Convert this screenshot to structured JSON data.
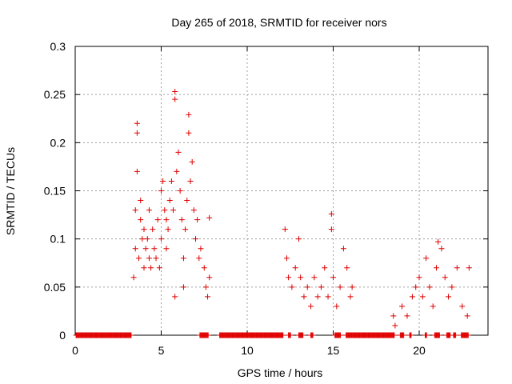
{
  "chart_data": {
    "type": "scatter",
    "title": "Day 265 of 2018, SRMTID for receiver nors",
    "xlabel": "GPS time / hours",
    "ylabel": "SRMTID / TECUs",
    "xlim": [
      0,
      24
    ],
    "ylim": [
      0,
      0.3
    ],
    "xticks": [
      0,
      5,
      10,
      15,
      20
    ],
    "yticks": [
      0,
      0.05,
      0.1,
      0.15,
      0.2,
      0.25,
      0.3
    ],
    "xtick_labels": [
      "0",
      "5",
      "10",
      "15",
      "20"
    ],
    "ytick_labels": [
      "0",
      "0.05",
      "0.1",
      "0.15",
      "0.2",
      "0.25",
      "0.3"
    ],
    "grid": true,
    "marker": "+",
    "color": "#e00000",
    "series": [
      {
        "name": "SRMTID",
        "points": [
          [
            3.4,
            0.06
          ],
          [
            3.5,
            0.09
          ],
          [
            3.5,
            0.13
          ],
          [
            3.6,
            0.21
          ],
          [
            3.6,
            0.22
          ],
          [
            3.6,
            0.17
          ],
          [
            3.7,
            0.08
          ],
          [
            3.8,
            0.12
          ],
          [
            3.8,
            0.14
          ],
          [
            3.9,
            0.1
          ],
          [
            4.0,
            0.07
          ],
          [
            4.0,
            0.11
          ],
          [
            4.1,
            0.09
          ],
          [
            4.2,
            0.1
          ],
          [
            4.3,
            0.08
          ],
          [
            4.3,
            0.13
          ],
          [
            4.4,
            0.07
          ],
          [
            4.5,
            0.11
          ],
          [
            4.6,
            0.09
          ],
          [
            4.7,
            0.08
          ],
          [
            4.8,
            0.12
          ],
          [
            4.9,
            0.07
          ],
          [
            5.0,
            0.1
          ],
          [
            5.0,
            0.15
          ],
          [
            5.1,
            0.16
          ],
          [
            5.2,
            0.13
          ],
          [
            5.3,
            0.12
          ],
          [
            5.3,
            0.09
          ],
          [
            5.4,
            0.11
          ],
          [
            5.5,
            0.14
          ],
          [
            5.6,
            0.16
          ],
          [
            5.7,
            0.13
          ],
          [
            5.8,
            0.253
          ],
          [
            5.8,
            0.245
          ],
          [
            5.8,
            0.04
          ],
          [
            5.9,
            0.17
          ],
          [
            6.0,
            0.19
          ],
          [
            6.1,
            0.15
          ],
          [
            6.2,
            0.12
          ],
          [
            6.3,
            0.08
          ],
          [
            6.3,
            0.05
          ],
          [
            6.4,
            0.11
          ],
          [
            6.5,
            0.14
          ],
          [
            6.6,
            0.229
          ],
          [
            6.6,
            0.21
          ],
          [
            6.7,
            0.16
          ],
          [
            6.8,
            0.18
          ],
          [
            6.9,
            0.13
          ],
          [
            7.0,
            0.1
          ],
          [
            7.1,
            0.12
          ],
          [
            7.2,
            0.08
          ],
          [
            7.3,
            0.09
          ],
          [
            7.5,
            0.07
          ],
          [
            7.6,
            0.05
          ],
          [
            7.7,
            0.04
          ],
          [
            7.8,
            0.122
          ],
          [
            7.8,
            0.06
          ],
          [
            12.2,
            0.11
          ],
          [
            12.3,
            0.08
          ],
          [
            12.4,
            0.06
          ],
          [
            12.6,
            0.05
          ],
          [
            12.8,
            0.07
          ],
          [
            13.0,
            0.1
          ],
          [
            13.1,
            0.06
          ],
          [
            13.3,
            0.04
          ],
          [
            13.5,
            0.05
          ],
          [
            13.7,
            0.03
          ],
          [
            13.9,
            0.06
          ],
          [
            14.1,
            0.04
          ],
          [
            14.3,
            0.05
          ],
          [
            14.5,
            0.07
          ],
          [
            14.7,
            0.04
          ],
          [
            14.9,
            0.126
          ],
          [
            14.9,
            0.11
          ],
          [
            15.0,
            0.06
          ],
          [
            15.2,
            0.03
          ],
          [
            15.4,
            0.05
          ],
          [
            15.6,
            0.09
          ],
          [
            15.8,
            0.07
          ],
          [
            16.0,
            0.04
          ],
          [
            16.1,
            0.05
          ],
          [
            18.5,
            0.02
          ],
          [
            18.6,
            0.01
          ],
          [
            19.0,
            0.03
          ],
          [
            19.3,
            0.02
          ],
          [
            19.6,
            0.04
          ],
          [
            19.8,
            0.05
          ],
          [
            20.0,
            0.06
          ],
          [
            20.2,
            0.04
          ],
          [
            20.4,
            0.08
          ],
          [
            20.6,
            0.05
          ],
          [
            20.8,
            0.03
          ],
          [
            21.0,
            0.07
          ],
          [
            21.1,
            0.097
          ],
          [
            21.3,
            0.09
          ],
          [
            21.5,
            0.06
          ],
          [
            21.7,
            0.04
          ],
          [
            21.9,
            0.05
          ],
          [
            22.2,
            0.07
          ],
          [
            22.5,
            0.03
          ],
          [
            22.8,
            0.02
          ],
          [
            22.9,
            0.07
          ]
        ]
      }
    ],
    "zero_band_intervals": [
      [
        0.05,
        3.25
      ],
      [
        7.25,
        7.75
      ],
      [
        8.4,
        12.1
      ],
      [
        12.4,
        12.55
      ],
      [
        13.0,
        13.25
      ],
      [
        13.7,
        13.85
      ],
      [
        15.1,
        15.45
      ],
      [
        15.75,
        18.55
      ],
      [
        18.9,
        19.1
      ],
      [
        19.45,
        19.55
      ],
      [
        20.35,
        20.45
      ],
      [
        20.9,
        21.2
      ],
      [
        21.6,
        21.8
      ],
      [
        22.0,
        22.15
      ],
      [
        22.45,
        22.85
      ]
    ]
  }
}
